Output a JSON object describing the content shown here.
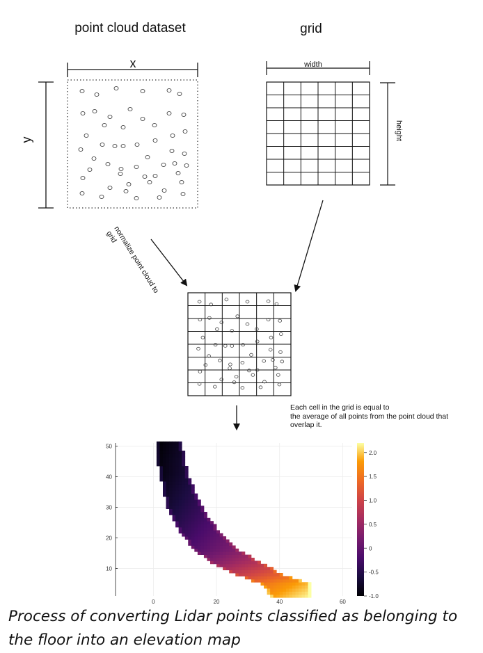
{
  "titles": {
    "left": "point cloud dataset",
    "right": "grid"
  },
  "dimensions": {
    "x": "x",
    "y": "y",
    "width": "width",
    "height": "height"
  },
  "arrow_label": {
    "line1": "normalize point cloud to",
    "line2": "grid"
  },
  "note": {
    "line1": "Each cell in the grid is equal to",
    "line2": "the average of all points from the point cloud that",
    "line3": "overlap it."
  },
  "caption": {
    "line1": "Process of converting Lidar points classified as belonging to",
    "line2": "the floor into an elevation map"
  },
  "chart_data": {
    "type": "heatmap",
    "x_ticks": [
      "0",
      "20",
      "40",
      "60"
    ],
    "y_ticks": [
      "10",
      "20",
      "30",
      "40",
      "50"
    ],
    "xlim": [
      -12,
      63
    ],
    "ylim": [
      1,
      51
    ],
    "colorbar": {
      "colormap": "inferno",
      "range": [
        -1.0,
        2.2
      ],
      "ticks": [
        "2.0",
        "1.5",
        "1.0",
        "0.5",
        "0",
        "-0.5",
        "-1.0"
      ]
    },
    "band": {
      "description_rows": [
        {
          "y": 51,
          "x0": 1,
          "x1": 9,
          "z": -1.0
        },
        {
          "y": 46,
          "x0": 1,
          "x1": 10,
          "z": -0.95
        },
        {
          "y": 41,
          "x0": 2,
          "x1": 11,
          "z": -0.9
        },
        {
          "y": 36,
          "x0": 3,
          "x1": 13,
          "z": -0.8
        },
        {
          "y": 31,
          "x0": 4,
          "x1": 15,
          "z": -0.7
        },
        {
          "y": 26,
          "x0": 6,
          "x1": 18,
          "z": -0.55
        },
        {
          "y": 21,
          "x0": 9,
          "x1": 22,
          "z": -0.35
        },
        {
          "y": 16,
          "x0": 13,
          "x1": 27,
          "z": -0.1
        },
        {
          "y": 12,
          "x0": 18,
          "x1": 34,
          "z": 0.3
        },
        {
          "y": 8,
          "x0": 26,
          "x1": 41,
          "z": 0.9
        },
        {
          "y": 5,
          "x0": 34,
          "x1": 50,
          "z": 1.5
        },
        {
          "y": 1,
          "x0": 37,
          "x1": 50,
          "z": 1.8
        }
      ]
    }
  }
}
